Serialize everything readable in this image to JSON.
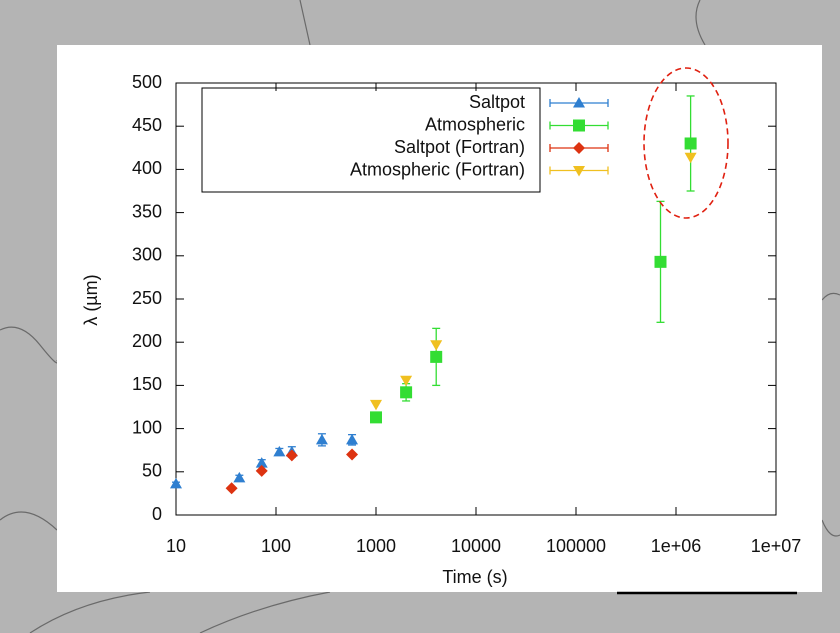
{
  "chart_data": {
    "type": "scatter",
    "xlabel": "Time (s)",
    "ylabel": "λ (µm)",
    "xscale": "log",
    "xlim": [
      10,
      10000000
    ],
    "xticks": [
      10,
      100,
      1000,
      10000,
      100000,
      {
        "value": 1000000,
        "label": "1e+06"
      },
      {
        "value": 10000000,
        "label": "1e+07"
      }
    ],
    "ylim": [
      0,
      500
    ],
    "yticks": [
      0,
      50,
      100,
      150,
      200,
      250,
      300,
      350,
      400,
      450,
      500
    ],
    "legend": "upper left",
    "series": [
      {
        "name": "Saltpot",
        "color": "#2f7fd0",
        "marker": "triangle-up",
        "x": [
          10,
          43,
          72,
          108,
          144,
          288,
          576
        ],
        "values": [
          36,
          43,
          60,
          73,
          73,
          87,
          87
        ],
        "errors": [
          2,
          3,
          4,
          4,
          6,
          7,
          6
        ]
      },
      {
        "name": "Atmospheric",
        "color": "#33dd33",
        "marker": "square",
        "x": [
          1000,
          2000,
          4000,
          700000,
          1400000
        ],
        "values": [
          113,
          142,
          183,
          293,
          430
        ],
        "errors": [
          3,
          10,
          33,
          70,
          55
        ]
      },
      {
        "name": "Saltpot (Fortran)",
        "color": "#dd3311",
        "marker": "diamond",
        "x": [
          36,
          72,
          144,
          576
        ],
        "values": [
          31,
          51,
          69,
          70
        ]
      },
      {
        "name": "Atmospheric (Fortran)",
        "color": "#f0c020",
        "marker": "triangle-down",
        "x": [
          1000,
          2000,
          4000,
          1400000
        ],
        "values": [
          128,
          156,
          197,
          414
        ]
      }
    ]
  }
}
